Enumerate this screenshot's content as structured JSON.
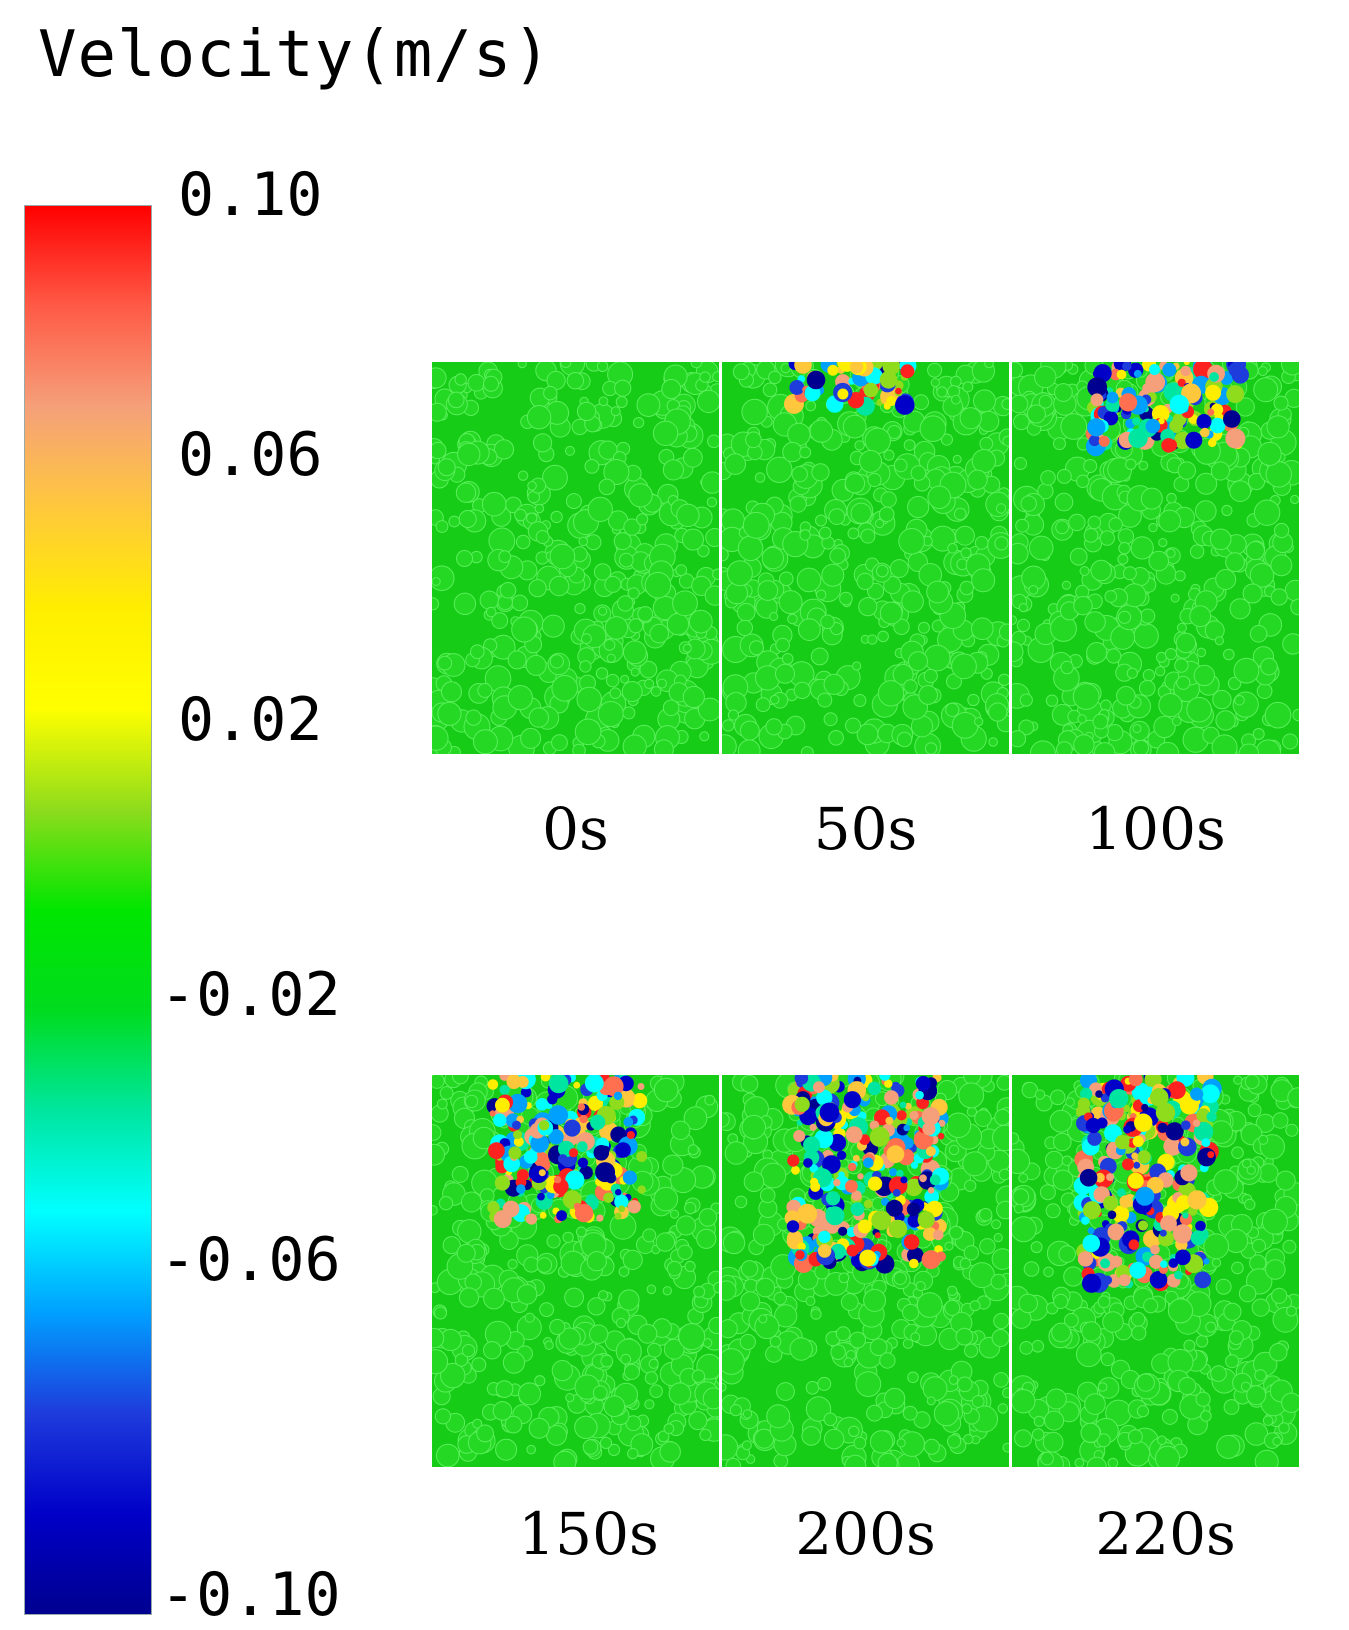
{
  "title": "Velocity(m/s)",
  "colorbar": {
    "ticks": [
      "0.10",
      "0.06",
      "0.02",
      "-0.02",
      "-0.06",
      "-0.10"
    ],
    "stops": [
      "#ff0000",
      "#ff5a46",
      "#f5a07a",
      "#ffc83c",
      "#ffee00",
      "#ffff00",
      "#8edc1c",
      "#00e600",
      "#00dc1e",
      "#00e6a0",
      "#00ffff",
      "#00a0ff",
      "#1e3cdc",
      "#0000c8",
      "#000090"
    ]
  },
  "panels": [
    {
      "label": "0s"
    },
    {
      "label": "50s"
    },
    {
      "label": "100s"
    },
    {
      "label": "150s"
    },
    {
      "label": "200s"
    },
    {
      "label": "220s"
    }
  ],
  "colors": {
    "background_green": "#16cc16",
    "particle_green": "#24d824",
    "particle_highlight": "#5af05a"
  }
}
